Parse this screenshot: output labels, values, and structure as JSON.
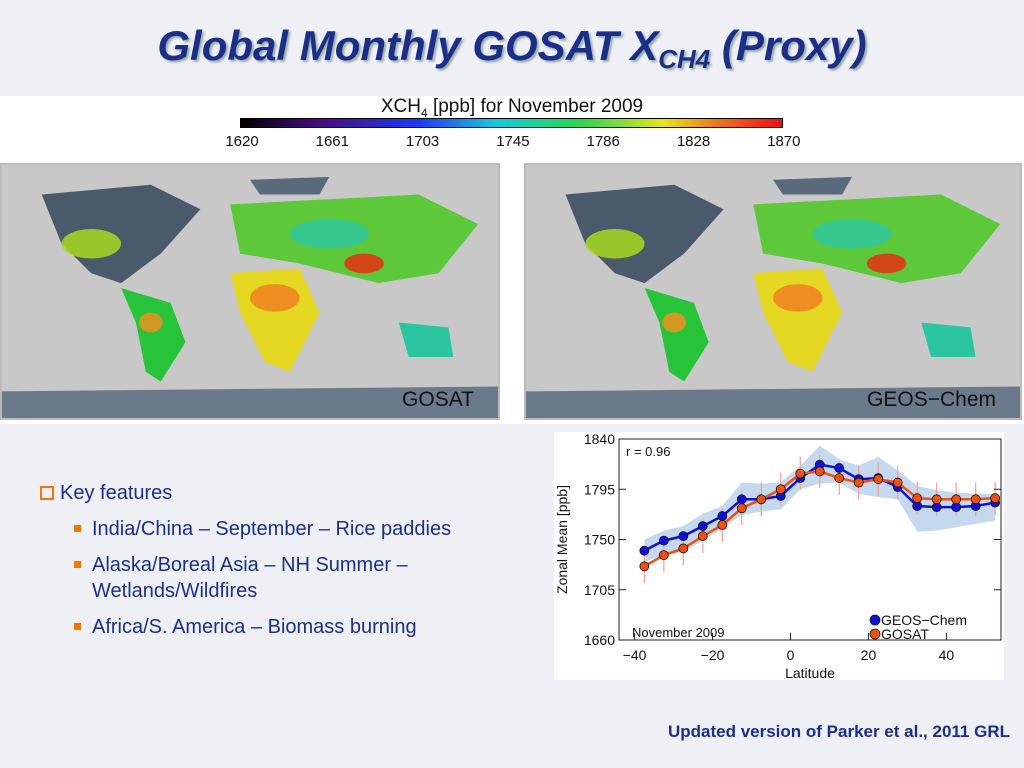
{
  "title": {
    "main": "Global Monthly GOSAT X",
    "sub": "CH4",
    "tail": " (Proxy)"
  },
  "colorbar": {
    "label_pre": "XCH",
    "label_sub": "4",
    "label_post": " [ppb] for November 2009",
    "ticks": [
      "1620",
      "1661",
      "1703",
      "1745",
      "1786",
      "1828",
      "1870"
    ]
  },
  "maps": [
    {
      "label": "GOSAT"
    },
    {
      "label": "GEOS−Chem"
    }
  ],
  "bullets": {
    "heading": "Key features",
    "items": [
      "India/China – September – Rice paddies",
      "Alaska/Boreal Asia – NH Summer – Wetlands/Wildfires",
      "Africa/S. America – Biomass burning"
    ]
  },
  "footer": "Updated version of Parker et al., 2011 GRL",
  "chart_data": {
    "type": "line",
    "xlabel": "Latitude",
    "ylabel": "Zonal Mean [ppb]",
    "xlim": [
      -44,
      54
    ],
    "ylim": [
      1660,
      1840
    ],
    "xticks": [
      -40,
      -20,
      0,
      20,
      40
    ],
    "xtick_labels": [
      "−40",
      "−20",
      "0",
      "20",
      "40"
    ],
    "yticks": [
      1660,
      1705,
      1750,
      1795,
      1840
    ],
    "annotations": {
      "r": "r = 0.96",
      "period": "November 2009"
    },
    "legend_position": "bottom-right",
    "x": [
      -37.5,
      -32.5,
      -27.5,
      -22.5,
      -17.5,
      -12.5,
      -7.5,
      -2.5,
      2.5,
      7.5,
      12.5,
      17.5,
      22.5,
      27.5,
      32.5,
      37.5,
      42.5,
      47.5,
      52.5
    ],
    "series": [
      {
        "name": "GEOS−Chem",
        "color": "#1010d8",
        "values": [
          1740,
          1749,
          1753,
          1762,
          1771,
          1786,
          1786,
          1789,
          1805,
          1817,
          1814,
          1804,
          1805,
          1797,
          1780,
          1779,
          1779,
          1780,
          1783
        ],
        "band_lower": [
          1730,
          1736,
          1739,
          1749,
          1760,
          1772,
          1775,
          1777,
          1795,
          1800,
          1801,
          1791,
          1788,
          1786,
          1757,
          1758,
          1761,
          1764,
          1767
        ],
        "band_upper": [
          1750,
          1758,
          1762,
          1773,
          1780,
          1801,
          1800,
          1801,
          1816,
          1834,
          1822,
          1816,
          1824,
          1812,
          1798,
          1794,
          1792,
          1791,
          1791
        ]
      },
      {
        "name": "GOSAT",
        "color": "#f05010",
        "values": [
          1726,
          1736,
          1742,
          1753,
          1763,
          1778,
          1786,
          1795,
          1809,
          1811,
          1805,
          1801,
          1804,
          1801,
          1787,
          1786,
          1786,
          1786,
          1787
        ],
        "error": 15
      }
    ]
  }
}
